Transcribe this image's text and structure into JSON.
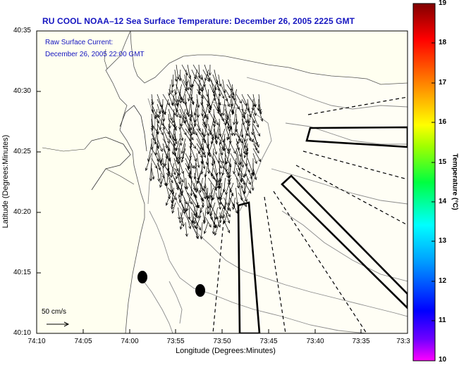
{
  "title": "RU COOL   NOAA–12  Sea Surface Temperature:  December 26, 2005 2225 GMT",
  "legend": {
    "line1": "Raw Surface Current:",
    "line2": "December 26, 2005 22:00 GMT"
  },
  "axes": {
    "xlabel": "Longitude (Degrees:Minutes)",
    "ylabel": "Latitude (Degrees:Minutes)",
    "x_ticks": [
      "74:10",
      "74:05",
      "74:00",
      "73:55",
      "73:50",
      "73:45",
      "73:40",
      "73:35",
      "73:3"
    ],
    "y_ticks": [
      "40:35",
      "40:30",
      "40:25",
      "40:20",
      "40:15",
      "40:10"
    ]
  },
  "colorbar": {
    "title": "Temperature (°C)",
    "ticks": [
      "19",
      "18",
      "17",
      "16",
      "15",
      "14",
      "13",
      "12",
      "11",
      "10"
    ],
    "min": 10,
    "max": 19,
    "colors": [
      "#ff00ff",
      "#3000ff",
      "#0000ff",
      "#00a0ff",
      "#00ffff",
      "#00ff40",
      "#a0ff00",
      "#ffff00",
      "#ff8000",
      "#ff0000",
      "#800000"
    ]
  },
  "scale": {
    "label": "50 cm/s"
  }
}
